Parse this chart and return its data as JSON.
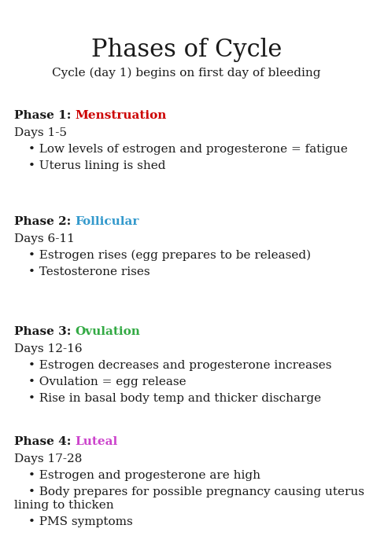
{
  "title": "Phases of Cycle",
  "subtitle": "Cycle (day 1) begins on first day of bleeding",
  "background_color": "#ffffff",
  "title_fontsize": 22,
  "subtitle_fontsize": 11,
  "body_fontsize": 11,
  "phases": [
    {
      "label_prefix": "Phase 1: ",
      "label_name": "Menstruation",
      "label_color": "#cc0000",
      "days": "Days 1-5",
      "bullets": [
        "Low levels of estrogen and progesterone = fatigue",
        "Uterus lining is shed"
      ]
    },
    {
      "label_prefix": "Phase 2: ",
      "label_name": "Follicular",
      "label_color": "#3399cc",
      "days": "Days 6-11",
      "bullets": [
        "Estrogen rises (egg prepares to be released)",
        "Testosterone rises"
      ]
    },
    {
      "label_prefix": "Phase 3: ",
      "label_name": "Ovulation",
      "label_color": "#33aa44",
      "days": "Days 12-16",
      "bullets": [
        "Estrogen decreases and progesterone increases",
        "Ovulation = egg release",
        "Rise in basal body temp and thicker discharge"
      ]
    },
    {
      "label_prefix": "Phase 4: ",
      "label_name": "Luteal",
      "label_color": "#cc44cc",
      "days": "Days 17-28",
      "bullets": [
        "Estrogen and progesterone are high",
        "Body prepares for possible pregnancy causing uterus\nlining to thicken",
        "PMS symptoms"
      ]
    }
  ],
  "figwidth": 4.74,
  "figheight": 7.1,
  "dpi": 100
}
